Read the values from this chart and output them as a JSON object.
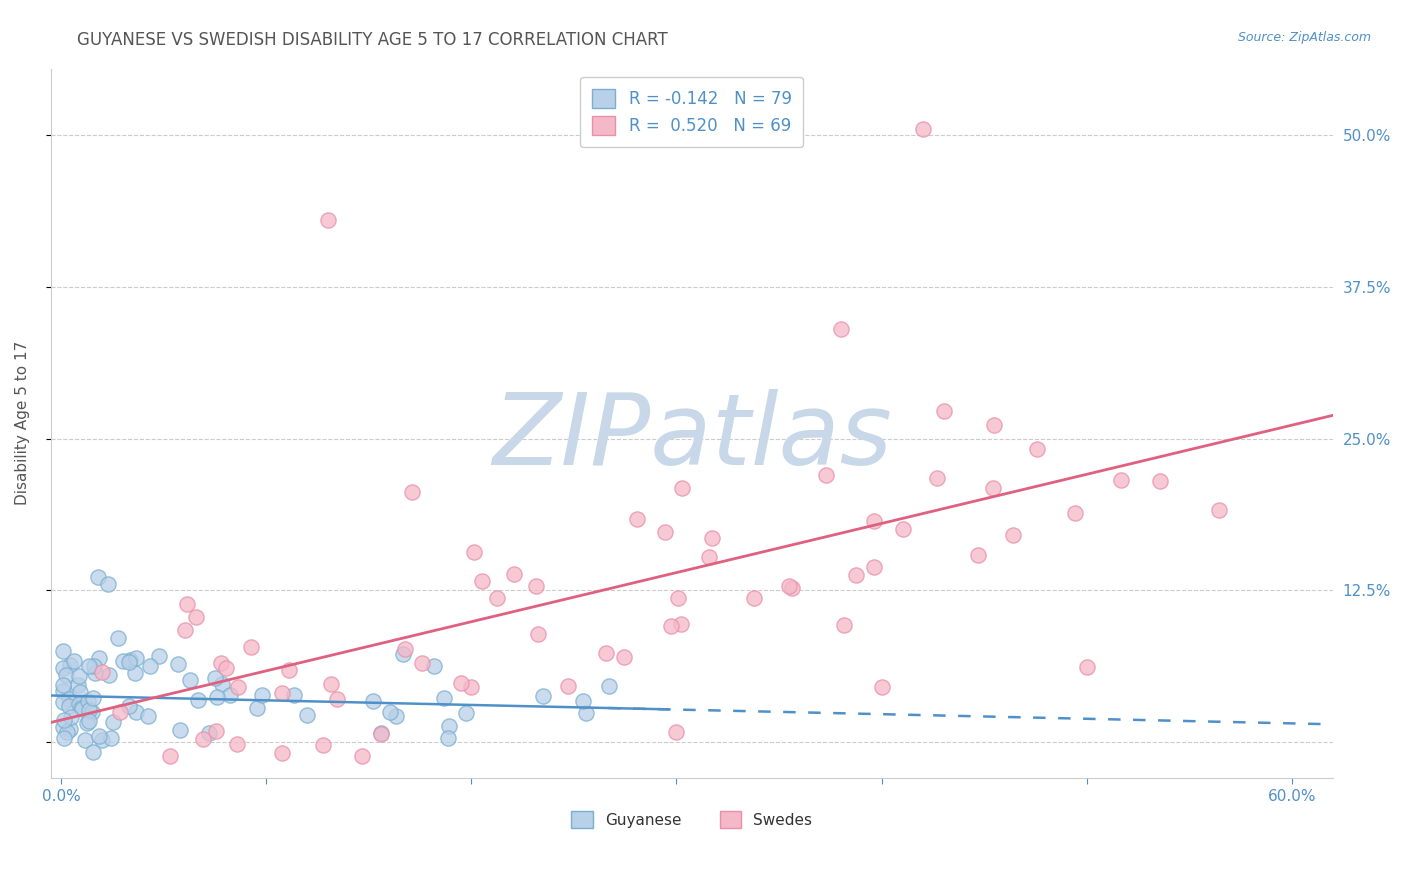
{
  "title": "GUYANESE VS SWEDISH DISABILITY AGE 5 TO 17 CORRELATION CHART",
  "source": "Source: ZipAtlas.com",
  "ylabel": "Disability Age 5 to 17",
  "xlim": [
    -0.005,
    0.62
  ],
  "ylim": [
    -0.03,
    0.555
  ],
  "xticks": [
    0.0,
    0.1,
    0.2,
    0.3,
    0.4,
    0.5,
    0.6
  ],
  "xticklabels": [
    "0.0%",
    "",
    "",
    "",
    "",
    "",
    "60.0%"
  ],
  "ytick_positions": [
    0.0,
    0.125,
    0.25,
    0.375,
    0.5
  ],
  "ytick_labels": [
    "",
    "12.5%",
    "25.0%",
    "37.5%",
    "50.0%"
  ],
  "legend_blue_label": "R = -0.142   N = 79",
  "legend_pink_label": "R =  0.520   N = 69",
  "legend_bottom_blue": "Guyanese",
  "legend_bottom_pink": "Swedes",
  "blue_fill_color": "#b8d0e8",
  "pink_fill_color": "#f5b8c8",
  "blue_edge_color": "#7aafd0",
  "pink_edge_color": "#e890a8",
  "blue_line_color": "#5090c8",
  "pink_line_color": "#e06080",
  "background_color": "#ffffff",
  "grid_color": "#cccccc",
  "title_color": "#555555",
  "axis_label_color": "#555555",
  "tick_label_color": "#5090c8",
  "watermark_text": "ZIPatlas",
  "watermark_color": "#c8d8e8",
  "blue_R": -0.142,
  "blue_N": 79,
  "pink_R": 0.52,
  "pink_N": 69,
  "blue_line_intercept": 0.038,
  "blue_line_slope": -0.038,
  "pink_line_intercept": 0.018,
  "pink_line_slope": 0.405,
  "dot_size": 120,
  "seed": 12
}
